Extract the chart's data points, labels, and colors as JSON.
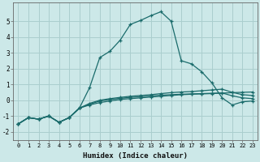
{
  "xlabel": "Humidex (Indice chaleur)",
  "xlim": [
    -0.5,
    23.5
  ],
  "ylim": [
    -2.5,
    6.2
  ],
  "yticks": [
    -2,
    -1,
    0,
    1,
    2,
    3,
    4,
    5
  ],
  "xticks": [
    0,
    1,
    2,
    3,
    4,
    5,
    6,
    7,
    8,
    9,
    10,
    11,
    12,
    13,
    14,
    15,
    16,
    17,
    18,
    19,
    20,
    21,
    22,
    23
  ],
  "bg_color": "#cce8e8",
  "grid_color": "#aacece",
  "line_color": "#1a6b6b",
  "x": [
    0,
    1,
    2,
    3,
    4,
    5,
    6,
    7,
    8,
    9,
    10,
    11,
    12,
    13,
    14,
    15,
    16,
    17,
    18,
    19,
    20,
    21,
    22,
    23
  ],
  "series": [
    [
      -1.5,
      -1.1,
      -1.2,
      -1.0,
      -1.4,
      -1.1,
      -0.5,
      0.8,
      2.7,
      3.1,
      3.8,
      4.8,
      5.05,
      5.35,
      5.6,
      5.0,
      2.5,
      2.3,
      1.8,
      1.1,
      0.15,
      -0.3,
      -0.1,
      -0.05
    ],
    [
      -1.5,
      -1.1,
      -1.2,
      -1.0,
      -1.4,
      -1.1,
      -0.5,
      -0.3,
      -0.15,
      -0.05,
      0.05,
      0.1,
      0.15,
      0.2,
      0.25,
      0.3,
      0.35,
      0.38,
      0.4,
      0.42,
      0.45,
      0.48,
      0.5,
      0.52
    ],
    [
      -1.5,
      -1.1,
      -1.2,
      -1.0,
      -1.4,
      -1.1,
      -0.5,
      -0.25,
      -0.05,
      0.05,
      0.12,
      0.18,
      0.22,
      0.27,
      0.32,
      0.35,
      0.38,
      0.4,
      0.42,
      0.44,
      0.46,
      0.28,
      0.15,
      0.1
    ],
    [
      -1.5,
      -1.1,
      -1.2,
      -1.0,
      -1.4,
      -1.1,
      -0.5,
      -0.2,
      0.0,
      0.1,
      0.18,
      0.25,
      0.3,
      0.35,
      0.42,
      0.48,
      0.52,
      0.55,
      0.6,
      0.65,
      0.7,
      0.5,
      0.35,
      0.3
    ]
  ]
}
